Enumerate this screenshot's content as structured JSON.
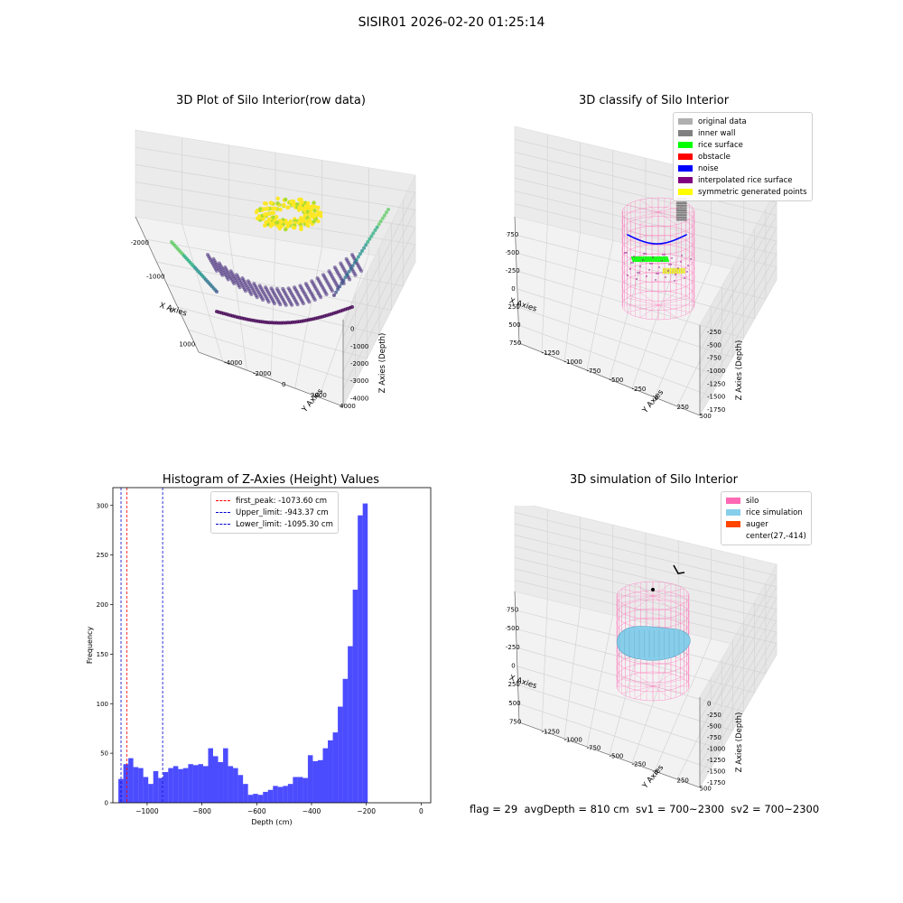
{
  "suptitle": "SISIR01 2026-02-20 01:25:14",
  "panels": {
    "raw": {
      "title": "3D Plot of Silo Interior(row data)",
      "xlabel": "X Axies",
      "ylabel": "Y Axies",
      "zlabel": "Z Axies (Depth)",
      "xticks": [
        "-2000",
        "-1000",
        "0",
        "1000"
      ],
      "yticks": [
        "-4000",
        "-2000",
        "0",
        "2000",
        "4000"
      ],
      "zticks": [
        "0",
        "-1000",
        "-2000",
        "-3000",
        "-4000"
      ]
    },
    "classify": {
      "title": "3D classify of Silo Interior",
      "xlabel": "X Axies",
      "ylabel": "Y Axies",
      "zlabel": "Z Axies (Depth)",
      "xticks": [
        "-750",
        "-500",
        "-250",
        "0",
        "250",
        "500",
        "750"
      ],
      "yticks": [
        "-1250",
        "-1000",
        "-750",
        "-500",
        "-250",
        "0",
        "250",
        "500"
      ],
      "zticks": [
        "-250",
        "-500",
        "-750",
        "-1000",
        "-1250",
        "-1500",
        "-1750"
      ],
      "legend": [
        {
          "label": "original data",
          "color": "#b0b0b0"
        },
        {
          "label": "inner wall",
          "color": "#808080"
        },
        {
          "label": "rice surface",
          "color": "#00ff00"
        },
        {
          "label": "obstacle",
          "color": "#ff0000"
        },
        {
          "label": "noise",
          "color": "#0000ff"
        },
        {
          "label": "interpolated rice surface",
          "color": "#800080"
        },
        {
          "label": "symmetric generated points",
          "color": "#ffff00"
        }
      ]
    },
    "simulation": {
      "title": "3D simulation of Silo Interior",
      "xlabel": "X Axies",
      "ylabel": "Y Axies",
      "zlabel": "Z Axies (Depth)",
      "xticks": [
        "-750",
        "-500",
        "-250",
        "0",
        "250",
        "500",
        "750"
      ],
      "yticks": [
        "-1250",
        "-1000",
        "-750",
        "-500",
        "-250",
        "0",
        "250",
        "500"
      ],
      "zticks": [
        "0",
        "-250",
        "-500",
        "-750",
        "-1000",
        "-1250",
        "-1500",
        "-1750"
      ],
      "legend": [
        {
          "label": "silo",
          "color": "#ff69b4"
        },
        {
          "label": "rice simulation",
          "color": "#87ceeb"
        },
        {
          "label": "auger",
          "color": "#ff4500"
        },
        {
          "label": "center(27,-414)",
          "color": ""
        }
      ]
    }
  },
  "chart_data": {
    "type": "bar",
    "title": "Histogram of Z-Axies (Height) Values",
    "xlabel": "Depth (cm)",
    "ylabel": "Frequency",
    "xlim": [
      -1125,
      35
    ],
    "ylim": [
      0,
      318
    ],
    "xticks": [
      -1000,
      -800,
      -600,
      -400,
      -200,
      0
    ],
    "yticks": [
      0,
      50,
      100,
      150,
      200,
      250,
      300
    ],
    "bar_color": "#0000ff",
    "bin_edges_start": -1105,
    "bin_width": 18.2,
    "values": [
      24,
      39,
      45,
      36,
      35,
      26,
      19,
      32,
      25,
      31,
      35,
      37,
      34,
      35,
      39,
      38,
      39,
      37,
      55,
      47,
      41,
      55,
      37,
      35,
      28,
      19,
      8,
      9,
      8,
      11,
      13,
      17,
      16,
      17,
      19,
      26,
      26,
      25,
      48,
      42,
      43,
      55,
      63,
      71,
      97,
      125,
      158,
      215,
      290,
      302
    ],
    "vlines": [
      {
        "label": "first_peak: -1073.60 cm",
        "x": -1073.6,
        "color": "#ff0000"
      },
      {
        "label": "Upper_limit: -943.37 cm",
        "x": -943.37,
        "color": "#0000cc"
      },
      {
        "label": "Lower_limit: -1095.30 cm",
        "x": -1095.3,
        "color": "#0000cc"
      }
    ]
  },
  "footer": "flag = 29  avgDepth = 810 cm  sv1 = 700~2300  sv2 = 700~2300"
}
